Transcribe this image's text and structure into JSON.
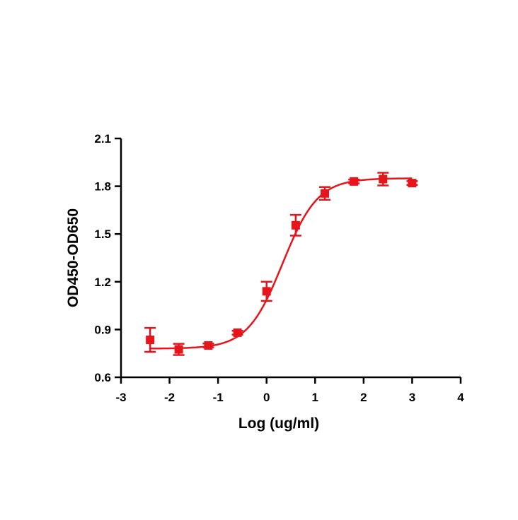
{
  "chart_data": {
    "type": "scatter",
    "xlabel": "Log  (ug/ml)",
    "ylabel": "OD450-OD650",
    "xlim": [
      -3,
      4
    ],
    "ylim": [
      0.6,
      2.1
    ],
    "x_ticks": [
      -3,
      -2,
      -1,
      0,
      1,
      2,
      3,
      4
    ],
    "y_ticks": [
      0.6,
      0.9,
      1.2,
      1.5,
      1.8,
      2.1
    ],
    "x_tick_labels": [
      "-3",
      "-2",
      "-1",
      "0",
      "1",
      "2",
      "3",
      "4"
    ],
    "y_tick_labels": [
      "0.6",
      "0.9",
      "1.2",
      "1.5",
      "1.8",
      "2.1"
    ],
    "color": "#e8141c",
    "grid": false,
    "legend": "none",
    "points": [
      {
        "x": -2.4,
        "y": 0.835,
        "err": 0.075
      },
      {
        "x": -1.81,
        "y": 0.775,
        "err": 0.035
      },
      {
        "x": -1.2,
        "y": 0.8,
        "err": 0.012
      },
      {
        "x": -0.6,
        "y": 0.88,
        "err": 0.012
      },
      {
        "x": 0.0,
        "y": 1.14,
        "err": 0.06
      },
      {
        "x": 0.6,
        "y": 1.555,
        "err": 0.065
      },
      {
        "x": 1.2,
        "y": 1.755,
        "err": 0.04
      },
      {
        "x": 1.8,
        "y": 1.83,
        "err": 0.012
      },
      {
        "x": 2.4,
        "y": 1.845,
        "err": 0.04
      },
      {
        "x": 3.0,
        "y": 1.82,
        "err": 0.012
      }
    ],
    "fit": {
      "model": "4PL",
      "bottom": 0.78,
      "top": 1.85,
      "logEC50": 0.33,
      "hill": 1.2
    }
  }
}
